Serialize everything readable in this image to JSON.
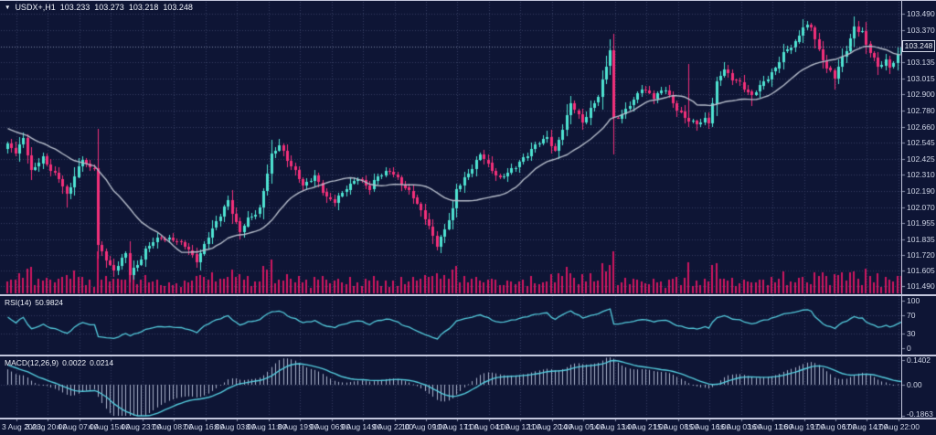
{
  "window_title": "USDX+ H1 chart",
  "colors": {
    "background": "#0e1535",
    "grid": "#343d60",
    "bull": "#4fe3d2",
    "bear": "#f4307a",
    "volume": "#cf1760",
    "ma_line": "#b5bcca",
    "indicator_line": "#54cbdd",
    "macd_histogram": "#a9b1c9",
    "axis_text": "#cfd5e6",
    "separator": "#c2c6dc",
    "bid_line": "#7e88a6",
    "text_bright": "#edf0f8"
  },
  "ohlc_line": {
    "symbol": "USDX+,H1",
    "open": "103.233",
    "high": "103.273",
    "low": "103.218",
    "close": "103.248"
  },
  "current_price": "103.248",
  "rsi_panel": {
    "name": "RSI(14)",
    "value": "50.9824",
    "axis_labels": [
      "100",
      "70",
      "30",
      "0"
    ],
    "levels": [
      70,
      30
    ]
  },
  "macd_panel": {
    "name": "MACD(12,26,9)",
    "value_main": "0.0022",
    "value_signal": "0.0214",
    "axis_labels": [
      "0.1402",
      "0.00",
      "-0.1863"
    ],
    "y_max": 0.1402,
    "y_min": -0.1863
  },
  "chart_data": {
    "type": "candlestick",
    "title": "USDX+ H1",
    "symbol": "USDX+",
    "timeframe": "H1",
    "legend_position": "top-left",
    "grid": true,
    "bar_count": 228,
    "bars_per_x_tick": 8,
    "open_first": 102.5,
    "last_close": 103.248,
    "jitter_amp": 0.022,
    "x_axis": {
      "labels": [
        "3 Aug 2023",
        "3 Aug 20:00",
        "4 Aug 07:00",
        "4 Aug 15:00",
        "4 Aug 23:00",
        "7 Aug 08:00",
        "7 Aug 16:00",
        "8 Aug 03:00",
        "8 Aug 11:00",
        "8 Aug 19:00",
        "9 Aug 06:00",
        "9 Aug 14:00",
        "9 Aug 22:00",
        "10 Aug 09:00",
        "10 Aug 17:00",
        "11 Aug 04:00",
        "11 Aug 12:00",
        "11 Aug 20:00",
        "14 Aug 05:00",
        "14 Aug 13:00",
        "14 Aug 21:00",
        "15 Aug 08:00",
        "15 Aug 16:00",
        "16 Aug 03:00",
        "16 Aug 11:00",
        "16 Aug 19:00",
        "17 Aug 06:00",
        "17 Aug 14:00",
        "17 Aug 22:00"
      ]
    },
    "y_axis": {
      "top_value": 103.49,
      "bottom_value": 101.49,
      "labels": [
        "103.490",
        "103.370",
        "103.250",
        "103.135",
        "103.015",
        "102.900",
        "102.780",
        "102.660",
        "102.545",
        "102.425",
        "102.310",
        "102.190",
        "102.070",
        "101.955",
        "101.835",
        "101.720",
        "101.605",
        "101.490"
      ]
    },
    "close_waypoints": [
      [
        0,
        102.52
      ],
      [
        2,
        102.48
      ],
      [
        4,
        102.58
      ],
      [
        6,
        102.33
      ],
      [
        9,
        102.43
      ],
      [
        13,
        102.28
      ],
      [
        15,
        102.15
      ],
      [
        17,
        102.3
      ],
      [
        19,
        102.43
      ],
      [
        21,
        102.35
      ],
      [
        22,
        102.36
      ],
      [
        23,
        101.78
      ],
      [
        25,
        101.7
      ],
      [
        27,
        101.6
      ],
      [
        30,
        101.73
      ],
      [
        31,
        101.58
      ],
      [
        33,
        101.65
      ],
      [
        35,
        101.76
      ],
      [
        39,
        101.85
      ],
      [
        43,
        101.82
      ],
      [
        45,
        101.78
      ],
      [
        48,
        101.68
      ],
      [
        51,
        101.85
      ],
      [
        56,
        102.12
      ],
      [
        59,
        101.88
      ],
      [
        61,
        101.98
      ],
      [
        64,
        102.06
      ],
      [
        67,
        102.45
      ],
      [
        69,
        102.52
      ],
      [
        73,
        102.33
      ],
      [
        75,
        102.22
      ],
      [
        78,
        102.3
      ],
      [
        81,
        102.14
      ],
      [
        83,
        102.1
      ],
      [
        86,
        102.22
      ],
      [
        89,
        102.28
      ],
      [
        92,
        102.2
      ],
      [
        94,
        102.31
      ],
      [
        97,
        102.33
      ],
      [
        100,
        102.25
      ],
      [
        103,
        102.15
      ],
      [
        106,
        101.98
      ],
      [
        109,
        101.8
      ],
      [
        111,
        101.9
      ],
      [
        113,
        102.05
      ],
      [
        114,
        102.2
      ],
      [
        116,
        102.28
      ],
      [
        120,
        102.45
      ],
      [
        125,
        102.28
      ],
      [
        129,
        102.36
      ],
      [
        133,
        102.5
      ],
      [
        137,
        102.58
      ],
      [
        139,
        102.48
      ],
      [
        143,
        102.82
      ],
      [
        146,
        102.7
      ],
      [
        150,
        102.88
      ],
      [
        153,
        103.22
      ],
      [
        154,
        102.72
      ],
      [
        157,
        102.78
      ],
      [
        159,
        102.85
      ],
      [
        161,
        102.95
      ],
      [
        164,
        102.88
      ],
      [
        167,
        102.93
      ],
      [
        170,
        102.8
      ],
      [
        172,
        102.72
      ],
      [
        173,
        102.7
      ],
      [
        175,
        102.68
      ],
      [
        177,
        102.72
      ],
      [
        178,
        102.7
      ],
      [
        180,
        102.98
      ],
      [
        182,
        103.08
      ],
      [
        184,
        103.02
      ],
      [
        186,
        102.98
      ],
      [
        189,
        102.88
      ],
      [
        192,
        103.0
      ],
      [
        195,
        103.08
      ],
      [
        197,
        103.2
      ],
      [
        200,
        103.28
      ],
      [
        202,
        103.4
      ],
      [
        204,
        103.38
      ],
      [
        206,
        103.22
      ],
      [
        208,
        103.1
      ],
      [
        210,
        103.02
      ],
      [
        211,
        103.1
      ],
      [
        213,
        103.22
      ],
      [
        215,
        103.4
      ],
      [
        217,
        103.36
      ],
      [
        218,
        103.25
      ],
      [
        220,
        103.16
      ],
      [
        221,
        103.1
      ],
      [
        223,
        103.15
      ],
      [
        224,
        103.1
      ],
      [
        226,
        103.18
      ],
      [
        227,
        103.248
      ]
    ],
    "wick_overrides": {
      "4": [
        102.62,
        null
      ],
      "15": [
        null,
        102.07
      ],
      "23": [
        null,
        101.72
      ],
      "27": [
        null,
        101.56
      ],
      "31": [
        null,
        101.52
      ],
      "48": [
        null,
        101.64
      ],
      "69": [
        102.57,
        null
      ],
      "109": [
        null,
        101.76
      ],
      "137": [
        102.63,
        null
      ],
      "153": [
        103.3,
        null
      ],
      "154": [
        null,
        102.68
      ],
      "173": [
        103.12,
        102.66
      ],
      "175": [
        null,
        102.63
      ],
      "189": [
        null,
        102.81
      ],
      "202": [
        103.45,
        null
      ],
      "210": [
        null,
        102.93
      ],
      "215": [
        103.47,
        null
      ],
      "221": [
        null,
        103.05
      ]
    },
    "overlays": {
      "ma": {
        "type": "sma",
        "period": 22,
        "seed_from": 102.78
      }
    },
    "panes": [
      {
        "name": "volume",
        "style": "histogram",
        "placement": "main-bottom"
      },
      {
        "name": "RSI",
        "params": [
          14
        ],
        "last_value": 50.9824,
        "levels": [
          70,
          30
        ],
        "range": [
          0,
          100
        ]
      },
      {
        "name": "MACD",
        "params": [
          12,
          26,
          9
        ],
        "last_main": 0.0022,
        "last_signal": 0.0214,
        "range": [
          -0.1863,
          0.1402
        ],
        "seed_macd": 0.1,
        "seed_signal": 0.12
      }
    ]
  }
}
